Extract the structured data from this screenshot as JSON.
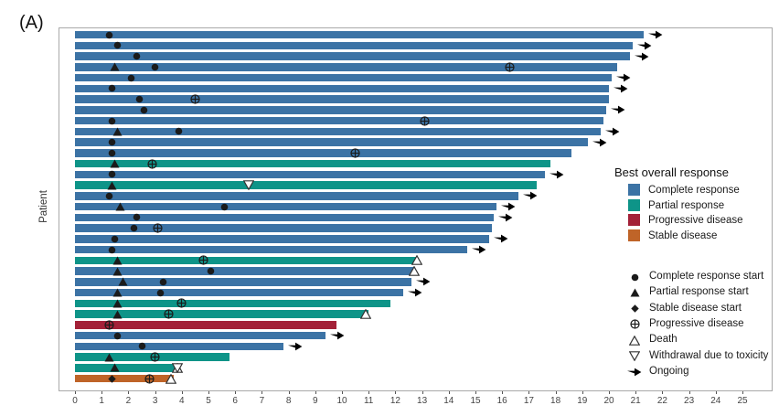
{
  "panel_label": "(A)",
  "ylabel": "Patient",
  "colors": {
    "complete": "#3c73a5",
    "partial": "#0e9488",
    "progressive": "#a32138",
    "stable": "#bf6428",
    "marker": "#1b1b1b",
    "panel_border": "#a9a9a9",
    "axis_text": "#444444"
  },
  "legend_response": {
    "title": "Best overall response",
    "items": [
      {
        "key": "complete",
        "label": "Complete response"
      },
      {
        "key": "partial",
        "label": "Partial response"
      },
      {
        "key": "progressive",
        "label": "Progressive disease"
      },
      {
        "key": "stable",
        "label": "Stable disease"
      }
    ]
  },
  "legend_symbols": {
    "items": [
      {
        "type": "cr",
        "label": "Complete response start"
      },
      {
        "type": "pr",
        "label": "Partial response start"
      },
      {
        "type": "sd",
        "label": "Stable disease start"
      },
      {
        "type": "pd",
        "label": "Progressive disease"
      },
      {
        "type": "death",
        "label": "Death"
      },
      {
        "type": "wd",
        "label": "Withdrawal due to toxicity"
      },
      {
        "type": "arrow",
        "label": "Ongoing"
      }
    ]
  },
  "chart_data": {
    "type": "bar",
    "orientation": "horizontal-swimmer",
    "xlabel": "",
    "ylabel": "Patient",
    "xlim": [
      0,
      25
    ],
    "x_ticks": [
      0,
      1,
      2,
      3,
      4,
      5,
      6,
      7,
      8,
      9,
      10,
      11,
      12,
      13,
      14,
      15,
      16,
      17,
      18,
      19,
      20,
      21,
      22,
      23,
      24,
      25
    ],
    "grid": false,
    "patients": [
      {
        "response": "complete",
        "end": 21.3,
        "ongoing": true,
        "markers": [
          {
            "type": "cr",
            "x": 1.3
          }
        ]
      },
      {
        "response": "complete",
        "end": 20.9,
        "ongoing": true,
        "markers": [
          {
            "type": "cr",
            "x": 1.6
          }
        ]
      },
      {
        "response": "complete",
        "end": 20.8,
        "ongoing": true,
        "markers": [
          {
            "type": "cr",
            "x": 2.3
          }
        ]
      },
      {
        "response": "complete",
        "end": 20.3,
        "ongoing": false,
        "markers": [
          {
            "type": "pr",
            "x": 1.5
          },
          {
            "type": "cr",
            "x": 3.0
          },
          {
            "type": "pd",
            "x": 16.3
          }
        ]
      },
      {
        "response": "complete",
        "end": 20.1,
        "ongoing": true,
        "markers": [
          {
            "type": "cr",
            "x": 2.1
          }
        ]
      },
      {
        "response": "complete",
        "end": 20.0,
        "ongoing": true,
        "markers": [
          {
            "type": "cr",
            "x": 1.4
          }
        ]
      },
      {
        "response": "complete",
        "end": 20.0,
        "ongoing": false,
        "markers": [
          {
            "type": "cr",
            "x": 2.4
          },
          {
            "type": "pd",
            "x": 4.5
          }
        ]
      },
      {
        "response": "complete",
        "end": 19.9,
        "ongoing": true,
        "markers": [
          {
            "type": "cr",
            "x": 2.6
          }
        ]
      },
      {
        "response": "complete",
        "end": 19.8,
        "ongoing": false,
        "markers": [
          {
            "type": "cr",
            "x": 1.4
          },
          {
            "type": "pd",
            "x": 13.1
          }
        ]
      },
      {
        "response": "complete",
        "end": 19.7,
        "ongoing": true,
        "markers": [
          {
            "type": "pr",
            "x": 1.6
          },
          {
            "type": "cr",
            "x": 3.9
          }
        ]
      },
      {
        "response": "complete",
        "end": 19.2,
        "ongoing": true,
        "markers": [
          {
            "type": "cr",
            "x": 1.4
          }
        ]
      },
      {
        "response": "complete",
        "end": 18.6,
        "ongoing": false,
        "markers": [
          {
            "type": "cr",
            "x": 1.4
          },
          {
            "type": "pd",
            "x": 10.5
          }
        ]
      },
      {
        "response": "partial",
        "end": 17.8,
        "ongoing": false,
        "markers": [
          {
            "type": "pr",
            "x": 1.5
          },
          {
            "type": "pd",
            "x": 2.9
          }
        ]
      },
      {
        "response": "complete",
        "end": 17.6,
        "ongoing": true,
        "markers": [
          {
            "type": "cr",
            "x": 1.4
          }
        ]
      },
      {
        "response": "partial",
        "end": 17.3,
        "ongoing": false,
        "markers": [
          {
            "type": "pr",
            "x": 1.4
          },
          {
            "type": "wd",
            "x": 6.5
          }
        ]
      },
      {
        "response": "complete",
        "end": 16.6,
        "ongoing": true,
        "markers": [
          {
            "type": "cr",
            "x": 1.3
          }
        ]
      },
      {
        "response": "complete",
        "end": 15.8,
        "ongoing": true,
        "markers": [
          {
            "type": "pr",
            "x": 1.7
          },
          {
            "type": "cr",
            "x": 5.6
          }
        ]
      },
      {
        "response": "complete",
        "end": 15.7,
        "ongoing": true,
        "markers": [
          {
            "type": "cr",
            "x": 2.3
          }
        ]
      },
      {
        "response": "complete",
        "end": 15.6,
        "ongoing": false,
        "markers": [
          {
            "type": "cr",
            "x": 2.2
          },
          {
            "type": "pd",
            "x": 3.1
          }
        ]
      },
      {
        "response": "complete",
        "end": 15.5,
        "ongoing": true,
        "markers": [
          {
            "type": "cr",
            "x": 1.5
          }
        ]
      },
      {
        "response": "complete",
        "end": 14.7,
        "ongoing": true,
        "markers": [
          {
            "type": "cr",
            "x": 1.4
          }
        ]
      },
      {
        "response": "partial",
        "end": 12.8,
        "ongoing": false,
        "markers": [
          {
            "type": "pr",
            "x": 1.6
          },
          {
            "type": "pd",
            "x": 4.8
          },
          {
            "type": "death",
            "x": 12.8
          }
        ]
      },
      {
        "response": "complete",
        "end": 12.7,
        "ongoing": false,
        "markers": [
          {
            "type": "pr",
            "x": 1.6
          },
          {
            "type": "cr",
            "x": 5.1
          },
          {
            "type": "death",
            "x": 12.7
          }
        ]
      },
      {
        "response": "complete",
        "end": 12.6,
        "ongoing": true,
        "markers": [
          {
            "type": "pr",
            "x": 1.8
          },
          {
            "type": "cr",
            "x": 3.3
          }
        ]
      },
      {
        "response": "complete",
        "end": 12.3,
        "ongoing": true,
        "markers": [
          {
            "type": "pr",
            "x": 1.6
          },
          {
            "type": "cr",
            "x": 3.2
          }
        ]
      },
      {
        "response": "partial",
        "end": 11.8,
        "ongoing": false,
        "markers": [
          {
            "type": "pr",
            "x": 1.6
          },
          {
            "type": "pd",
            "x": 4.0
          }
        ]
      },
      {
        "response": "partial",
        "end": 11.0,
        "ongoing": false,
        "markers": [
          {
            "type": "pr",
            "x": 1.6
          },
          {
            "type": "pd",
            "x": 3.5
          },
          {
            "type": "death",
            "x": 10.9
          }
        ]
      },
      {
        "response": "progressive",
        "end": 9.8,
        "ongoing": false,
        "markers": [
          {
            "type": "pd",
            "x": 1.3
          }
        ]
      },
      {
        "response": "complete",
        "end": 9.4,
        "ongoing": true,
        "markers": [
          {
            "type": "cr",
            "x": 1.6
          }
        ]
      },
      {
        "response": "complete",
        "end": 7.8,
        "ongoing": true,
        "markers": [
          {
            "type": "cr",
            "x": 2.5
          }
        ]
      },
      {
        "response": "partial",
        "end": 5.8,
        "ongoing": false,
        "markers": [
          {
            "type": "pr",
            "x": 1.3
          },
          {
            "type": "pd",
            "x": 3.0
          }
        ]
      },
      {
        "response": "partial",
        "end": 3.9,
        "ongoing": false,
        "markers": [
          {
            "type": "pr",
            "x": 1.5
          },
          {
            "type": "death",
            "x": 3.85
          },
          {
            "type": "wd",
            "x": 3.85
          }
        ]
      },
      {
        "response": "stable",
        "end": 3.7,
        "ongoing": false,
        "markers": [
          {
            "type": "sd",
            "x": 1.4
          },
          {
            "type": "pd",
            "x": 2.8
          },
          {
            "type": "death",
            "x": 3.6
          }
        ]
      }
    ]
  }
}
